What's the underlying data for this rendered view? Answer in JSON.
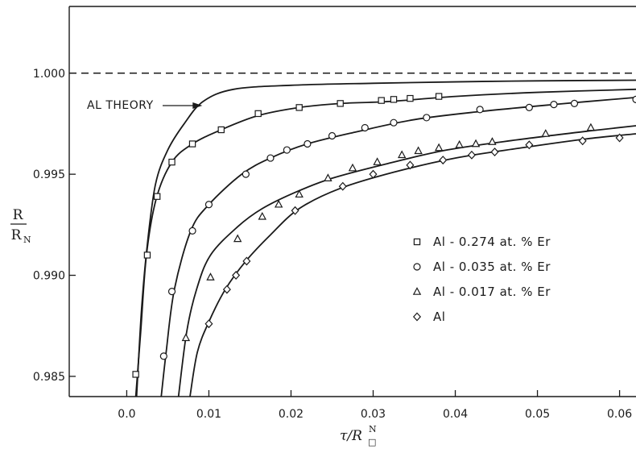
{
  "chart_data": {
    "type": "scatter",
    "x_label": {
      "main": "τ/R",
      "sub": "□",
      "sup": "N"
    },
    "y_label": {
      "num": "R",
      "den": "R",
      "den_sub": "N"
    },
    "xlim": [
      -0.007,
      0.062
    ],
    "ylim": [
      0.984,
      1.0033
    ],
    "x_ticks": [
      {
        "value": 0.0,
        "label": "0.0"
      },
      {
        "value": 0.01,
        "label": "0.01"
      },
      {
        "value": 0.02,
        "label": "0.02"
      },
      {
        "value": 0.03,
        "label": "0.03"
      },
      {
        "value": 0.04,
        "label": "0.04"
      },
      {
        "value": 0.05,
        "label": "0.05"
      },
      {
        "value": 0.06,
        "label": "0.06"
      }
    ],
    "y_ticks": [
      {
        "value": 0.985,
        "label": "0.985"
      },
      {
        "value": 0.99,
        "label": "0.990"
      },
      {
        "value": 0.995,
        "label": "0.995"
      },
      {
        "value": 1.0,
        "label": "1.000"
      }
    ],
    "reference_line": {
      "y": 1.0,
      "style": "dashed"
    },
    "annotation": {
      "text": "AL THEORY",
      "points_to": [
        0.0093,
        0.9988
      ]
    },
    "legend": {
      "placement": "center-right",
      "entries": [
        {
          "marker": "square",
          "label": "Al - 0.274 at. % Er"
        },
        {
          "marker": "circle",
          "label": "Al - 0.035 at. % Er"
        },
        {
          "marker": "triangle",
          "label": "Al - 0.017 at. % Er"
        },
        {
          "marker": "diamond",
          "label": "Al"
        }
      ]
    },
    "curves": [
      {
        "key": "theory",
        "points": [
          [
            0.0012,
            0.984
          ],
          [
            0.0018,
            0.9883
          ],
          [
            0.0025,
            0.9915
          ],
          [
            0.0035,
            0.9945
          ],
          [
            0.005,
            0.9962
          ],
          [
            0.007,
            0.9975
          ],
          [
            0.0093,
            0.9986
          ],
          [
            0.013,
            0.9992
          ],
          [
            0.02,
            0.9994
          ],
          [
            0.03,
            0.9995
          ],
          [
            0.04,
            0.99957
          ],
          [
            0.05,
            0.99962
          ],
          [
            0.062,
            0.99965
          ]
        ]
      },
      {
        "key": "er274",
        "points": [
          [
            0.0011,
            0.984
          ],
          [
            0.0017,
            0.9872
          ],
          [
            0.0024,
            0.991
          ],
          [
            0.0036,
            0.9938
          ],
          [
            0.0055,
            0.9956
          ],
          [
            0.008,
            0.9965
          ],
          [
            0.0115,
            0.9972
          ],
          [
            0.016,
            0.9979
          ],
          [
            0.021,
            0.9983
          ],
          [
            0.026,
            0.9985
          ],
          [
            0.032,
            0.9986
          ],
          [
            0.04,
            0.99885
          ],
          [
            0.05,
            0.99905
          ],
          [
            0.062,
            0.9992
          ]
        ]
      },
      {
        "key": "er035",
        "points": [
          [
            0.0042,
            0.984
          ],
          [
            0.0048,
            0.9862
          ],
          [
            0.0058,
            0.9893
          ],
          [
            0.0078,
            0.9922
          ],
          [
            0.01,
            0.9935
          ],
          [
            0.014,
            0.995
          ],
          [
            0.0175,
            0.9958
          ],
          [
            0.022,
            0.9965
          ],
          [
            0.028,
            0.9971
          ],
          [
            0.035,
            0.9977
          ],
          [
            0.043,
            0.9981
          ],
          [
            0.052,
            0.99845
          ],
          [
            0.062,
            0.9988
          ]
        ]
      },
      {
        "key": "er017",
        "points": [
          [
            0.0063,
            0.984
          ],
          [
            0.0073,
            0.9872
          ],
          [
            0.0085,
            0.9893
          ],
          [
            0.0102,
            0.991
          ],
          [
            0.0135,
            0.9924
          ],
          [
            0.0165,
            0.9933
          ],
          [
            0.0205,
            0.9941
          ],
          [
            0.025,
            0.9948
          ],
          [
            0.0315,
            0.9955
          ],
          [
            0.039,
            0.9962
          ],
          [
            0.0475,
            0.9967
          ],
          [
            0.0565,
            0.99715
          ],
          [
            0.062,
            0.9974
          ]
        ]
      },
      {
        "key": "al",
        "points": [
          [
            0.0077,
            0.984
          ],
          [
            0.0086,
            0.9862
          ],
          [
            0.01,
            0.9877
          ],
          [
            0.012,
            0.9893
          ],
          [
            0.0145,
            0.9907
          ],
          [
            0.0175,
            0.992
          ],
          [
            0.021,
            0.9933
          ],
          [
            0.026,
            0.9943
          ],
          [
            0.0325,
            0.9951
          ],
          [
            0.04,
            0.9958
          ],
          [
            0.048,
            0.9963
          ],
          [
            0.056,
            0.99675
          ],
          [
            0.062,
            0.997
          ]
        ]
      }
    ],
    "series": [
      {
        "key": "er274",
        "marker": "square",
        "name": "Al - 0.274 at. % Er",
        "points": [
          [
            0.0011,
            0.9851
          ],
          [
            0.0025,
            0.991
          ],
          [
            0.0037,
            0.9939
          ],
          [
            0.0055,
            0.9956
          ],
          [
            0.008,
            0.9965
          ],
          [
            0.0115,
            0.9972
          ],
          [
            0.016,
            0.998
          ],
          [
            0.021,
            0.9983
          ],
          [
            0.026,
            0.9985
          ],
          [
            0.031,
            0.99865
          ],
          [
            0.0325,
            0.9987
          ],
          [
            0.0345,
            0.99875
          ],
          [
            0.038,
            0.99885
          ]
        ]
      },
      {
        "key": "er035",
        "marker": "circle",
        "name": "Al - 0.035 at. % Er",
        "points": [
          [
            0.0045,
            0.986
          ],
          [
            0.0055,
            0.9892
          ],
          [
            0.008,
            0.9922
          ],
          [
            0.01,
            0.9935
          ],
          [
            0.0145,
            0.995
          ],
          [
            0.0175,
            0.9958
          ],
          [
            0.0195,
            0.9962
          ],
          [
            0.022,
            0.9965
          ],
          [
            0.025,
            0.9969
          ],
          [
            0.029,
            0.9973
          ],
          [
            0.0325,
            0.99755
          ],
          [
            0.0365,
            0.9978
          ],
          [
            0.043,
            0.9982
          ],
          [
            0.049,
            0.9983
          ],
          [
            0.052,
            0.99845
          ],
          [
            0.0545,
            0.9985
          ],
          [
            0.062,
            0.9987
          ]
        ]
      },
      {
        "key": "er017",
        "marker": "triangle",
        "name": "Al - 0.017 at. % Er",
        "points": [
          [
            0.0072,
            0.9869
          ],
          [
            0.0102,
            0.9899
          ],
          [
            0.0135,
            0.9918
          ],
          [
            0.0165,
            0.9929
          ],
          [
            0.0185,
            0.9935
          ],
          [
            0.021,
            0.994
          ],
          [
            0.0245,
            0.9948
          ],
          [
            0.0275,
            0.9953
          ],
          [
            0.0305,
            0.9956
          ],
          [
            0.0335,
            0.99595
          ],
          [
            0.0355,
            0.99615
          ],
          [
            0.038,
            0.9963
          ],
          [
            0.0405,
            0.99645
          ],
          [
            0.0425,
            0.9965
          ],
          [
            0.0445,
            0.9966
          ],
          [
            0.051,
            0.997
          ],
          [
            0.0565,
            0.9973
          ]
        ]
      },
      {
        "key": "al",
        "marker": "diamond",
        "name": "Al",
        "points": [
          [
            0.01,
            0.9876
          ],
          [
            0.0122,
            0.9893
          ],
          [
            0.0133,
            0.99
          ],
          [
            0.0146,
            0.9907
          ],
          [
            0.0205,
            0.9932
          ],
          [
            0.0263,
            0.9944
          ],
          [
            0.03,
            0.995
          ],
          [
            0.0345,
            0.99545
          ],
          [
            0.0385,
            0.9957
          ],
          [
            0.042,
            0.99595
          ],
          [
            0.0448,
            0.9961
          ],
          [
            0.049,
            0.99645
          ],
          [
            0.0555,
            0.99665
          ],
          [
            0.06,
            0.9968
          ]
        ]
      }
    ]
  }
}
